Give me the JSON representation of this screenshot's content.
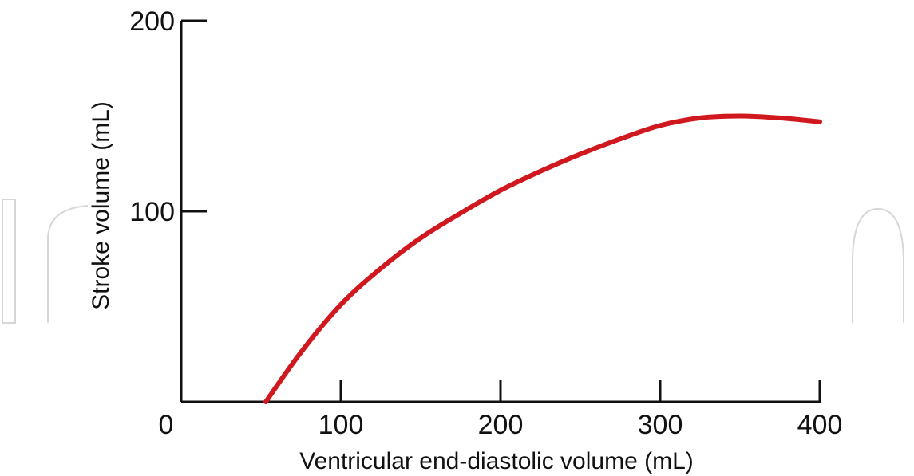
{
  "colors": {
    "curve": "#d0191f",
    "axis": "#111111",
    "watermark": "#d6d6d6"
  },
  "chart_data": {
    "type": "line",
    "title": "",
    "xlabel": "Ventricular end-diastolic volume (mL)",
    "ylabel": "Stroke volume (mL)",
    "xlim": [
      0,
      400
    ],
    "ylim": [
      0,
      200
    ],
    "x_ticks": [
      100,
      200,
      300,
      400
    ],
    "x_tick_labels": [
      "100",
      "200",
      "300",
      "400"
    ],
    "y_ticks": [
      100,
      200
    ],
    "y_tick_labels": [
      "100",
      "200"
    ],
    "origin_label": "0",
    "grid": false,
    "legend": "none",
    "series": [
      {
        "x": [
          53,
          75,
          100,
          125,
          150,
          175,
          200,
          225,
          250,
          275,
          300,
          325,
          350,
          375,
          400
        ],
        "values": [
          0,
          26,
          51,
          70,
          86,
          99,
          111,
          121,
          130,
          138,
          145,
          149,
          150,
          149,
          147
        ]
      }
    ]
  }
}
